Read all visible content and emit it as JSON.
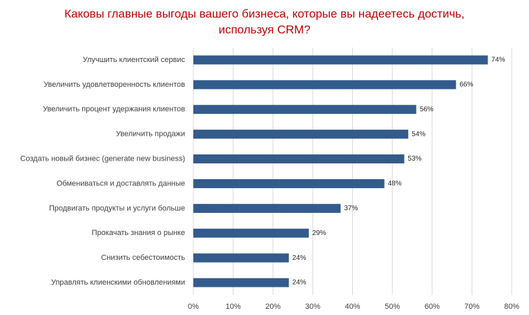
{
  "chart_data": {
    "type": "bar",
    "orientation": "horizontal",
    "title": [
      "Каковы главные выгоды вашего бизнеса, которые вы надеетесь достичь,",
      "используя CRM?"
    ],
    "categories": [
      "Улучшить клиентский сервис",
      "Увеличить удовлетворенность клиентов",
      "Увеличить процент удержания клиентов",
      "Увеличить продажи",
      "Создать новый бизнес (generate new business)",
      "Обмениваться и доставлять данные",
      "Продвигать продукты и услуги больше",
      "Прокачать знания о рынке",
      "Снизить себестоимость",
      "Управлять клиенскими обновлениями"
    ],
    "values": [
      74,
      66,
      56,
      54,
      53,
      48,
      37,
      29,
      24,
      24
    ],
    "value_labels": [
      "74%",
      "66%",
      "56%",
      "54%",
      "53%",
      "48%",
      "37%",
      "29%",
      "24%",
      "24%"
    ],
    "color": "#335b8c",
    "xlim": [
      0,
      80
    ],
    "xticks": [
      {
        "value": 0,
        "label": "0%"
      },
      {
        "value": 10,
        "label": "10%"
      },
      {
        "value": 20,
        "label": "20%"
      },
      {
        "value": 30,
        "label": "30%"
      },
      {
        "value": 40,
        "label": "40%"
      },
      {
        "value": 50,
        "label": "50%"
      },
      {
        "value": 60,
        "label": "60%"
      },
      {
        "value": 70,
        "label": "70%"
      },
      {
        "value": 80,
        "label": "80%"
      }
    ],
    "grid": true
  }
}
